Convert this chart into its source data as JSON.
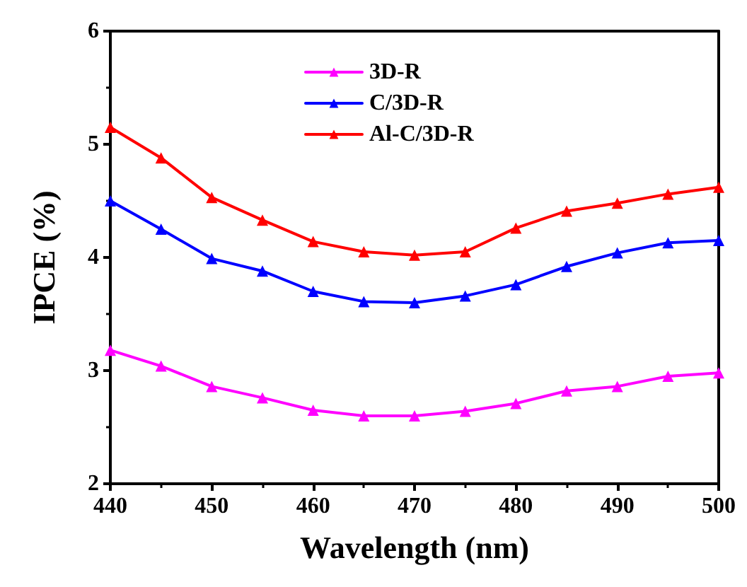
{
  "chart_data": {
    "type": "line",
    "xlabel": "Wavelength (nm)",
    "ylabel": "IPCE (%)",
    "x": [
      440,
      445,
      450,
      455,
      460,
      465,
      470,
      475,
      480,
      485,
      490,
      495,
      500
    ],
    "series": [
      {
        "name": "3D-R",
        "color": "#ff00ff",
        "values": [
          3.18,
          3.04,
          2.86,
          2.76,
          2.65,
          2.6,
          2.6,
          2.64,
          2.71,
          2.82,
          2.86,
          2.95,
          2.98
        ]
      },
      {
        "name": "C/3D-R",
        "color": "#0000ff",
        "values": [
          4.5,
          4.25,
          3.99,
          3.88,
          3.7,
          3.61,
          3.6,
          3.66,
          3.76,
          3.92,
          4.04,
          4.13,
          4.15
        ]
      },
      {
        "name": "Al-C/3D-R",
        "color": "#ff0000",
        "values": [
          5.15,
          4.88,
          4.53,
          4.33,
          4.14,
          4.05,
          4.02,
          4.05,
          4.26,
          4.41,
          4.48,
          4.56,
          4.62
        ]
      }
    ],
    "xlim": [
      440,
      500
    ],
    "xticks": [
      440,
      450,
      460,
      470,
      480,
      490,
      500
    ],
    "ylim": [
      2,
      6
    ],
    "yticks": [
      2,
      3,
      4,
      5,
      6
    ],
    "grid": false,
    "legend": "top",
    "marker": "triangle",
    "line_style": "solid"
  }
}
